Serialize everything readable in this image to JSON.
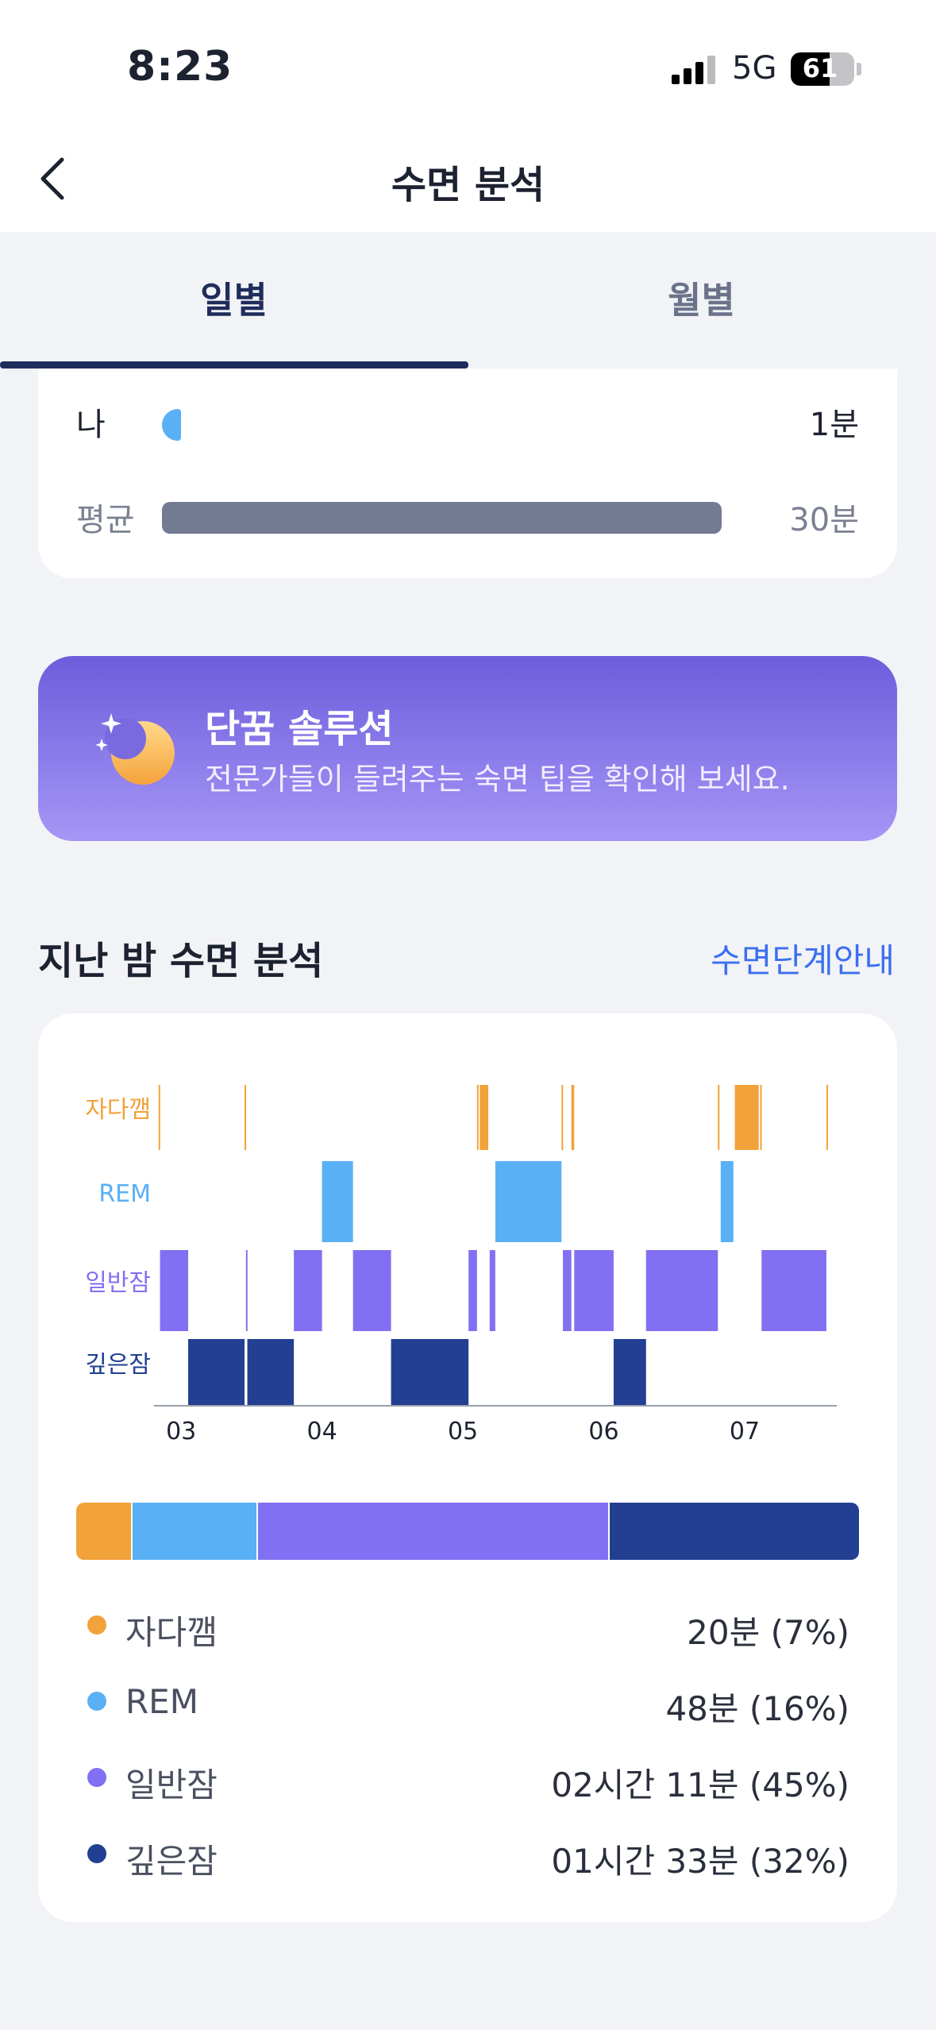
{
  "status_bar": {
    "time": "8:23",
    "network": "5G",
    "battery": "61"
  },
  "nav": {
    "title": "수면 분석"
  },
  "tabs": [
    {
      "label": "일별",
      "active": true
    },
    {
      "label": "월별",
      "active": false
    }
  ],
  "comparison": {
    "rows": [
      {
        "label": "나",
        "value": "1분",
        "minutes": 1,
        "color": "#5ab0f5"
      },
      {
        "label": "평균",
        "value": "30분",
        "minutes": 30,
        "color": "#737b92"
      }
    ]
  },
  "banner": {
    "title": "단꿈 솔루션",
    "subtitle": "전문가들이 들려주는 숙면 팁을 확인해 보세요."
  },
  "section": {
    "title": "지난 밤 수면 분석",
    "link": "수면단계안내"
  },
  "chart_data": {
    "type": "hypnogram",
    "stages": [
      "자다깸",
      "REM",
      "일반잠",
      "깊은잠"
    ],
    "stage_colors": {
      "자다깸": "#f2a23a",
      "REM": "#5ab0f5",
      "일반잠": "#8170f2",
      "깊은잠": "#223f92"
    },
    "x_ticks": [
      "03",
      "04",
      "05",
      "06",
      "07"
    ],
    "x_tick_hours": [
      3,
      4,
      5,
      6,
      7
    ],
    "x_range": [
      2.83,
      7.62
    ],
    "segments": [
      {
        "stage": "자다깸",
        "start": 2.84,
        "end": 2.85
      },
      {
        "stage": "일반잠",
        "start": 2.85,
        "end": 3.05
      },
      {
        "stage": "깊은잠",
        "start": 3.05,
        "end": 3.45
      },
      {
        "stage": "자다깸",
        "start": 3.45,
        "end": 3.46
      },
      {
        "stage": "일반잠",
        "start": 3.46,
        "end": 3.47
      },
      {
        "stage": "깊은잠",
        "start": 3.47,
        "end": 3.8
      },
      {
        "stage": "일반잠",
        "start": 3.8,
        "end": 4.0
      },
      {
        "stage": "REM",
        "start": 4.0,
        "end": 4.22
      },
      {
        "stage": "일반잠",
        "start": 4.22,
        "end": 4.49
      },
      {
        "stage": "깊은잠",
        "start": 4.49,
        "end": 5.04
      },
      {
        "stage": "일반잠",
        "start": 5.04,
        "end": 5.1
      },
      {
        "stage": "자다깸",
        "start": 5.1,
        "end": 5.11
      },
      {
        "stage": "자다깸",
        "start": 5.12,
        "end": 5.18
      },
      {
        "stage": "일반잠",
        "start": 5.19,
        "end": 5.23
      },
      {
        "stage": "REM",
        "start": 5.23,
        "end": 5.7
      },
      {
        "stage": "자다깸",
        "start": 5.7,
        "end": 5.71
      },
      {
        "stage": "일반잠",
        "start": 5.71,
        "end": 5.77
      },
      {
        "stage": "자다깸",
        "start": 5.77,
        "end": 5.79
      },
      {
        "stage": "일반잠",
        "start": 5.79,
        "end": 6.07
      },
      {
        "stage": "깊은잠",
        "start": 6.07,
        "end": 6.3
      },
      {
        "stage": "일반잠",
        "start": 6.3,
        "end": 6.81
      },
      {
        "stage": "자다깸",
        "start": 6.81,
        "end": 6.82
      },
      {
        "stage": "REM",
        "start": 6.83,
        "end": 6.92
      },
      {
        "stage": "자다깸",
        "start": 6.93,
        "end": 7.1
      },
      {
        "stage": "자다깸",
        "start": 7.11,
        "end": 7.12
      },
      {
        "stage": "일반잠",
        "start": 7.12,
        "end": 7.58
      },
      {
        "stage": "자다깸",
        "start": 7.58,
        "end": 7.59
      }
    ],
    "stacked_bar": [
      {
        "stage": "자다깸",
        "percent": 7
      },
      {
        "stage": "REM",
        "percent": 16
      },
      {
        "stage": "일반잠",
        "percent": 45
      },
      {
        "stage": "깊은잠",
        "percent": 32
      }
    ]
  },
  "legend": [
    {
      "name": "자다깸",
      "value": "20분 (7%)",
      "color": "#f2a23a"
    },
    {
      "name": "REM",
      "value": "48분 (16%)",
      "color": "#5ab0f5"
    },
    {
      "name": "일반잠",
      "value": "02시간 11분 (45%)",
      "color": "#8170f2"
    },
    {
      "name": "깊은잠",
      "value": "01시간 33분 (32%)",
      "color": "#223f92"
    }
  ]
}
